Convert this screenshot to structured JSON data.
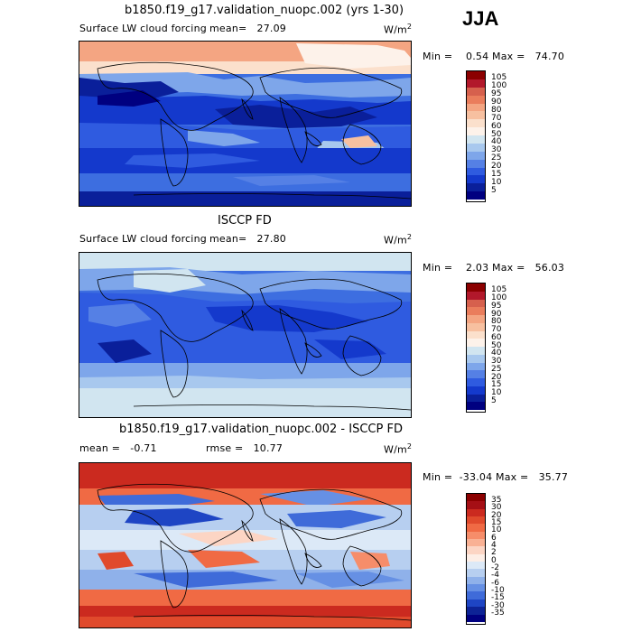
{
  "season": "JJA",
  "panels": [
    {
      "title": "b1850.f19_g17.validation_nuopc.002 (yrs 1-30)",
      "variable": "Surface LW cloud forcing",
      "mean_label": "mean=",
      "mean_value": "27.09",
      "units": "W/m",
      "units_exp": "2",
      "min_label": "Min =",
      "min_value": "0.54",
      "max_label": "Max =",
      "max_value": "74.70",
      "levels": [
        "105",
        "100",
        "95",
        "90",
        "80",
        "70",
        "60",
        "50",
        "40",
        "30",
        "25",
        "20",
        "15",
        "10",
        "5"
      ],
      "colors": [
        "#8b0000",
        "#b2182b",
        "#d6604d",
        "#ea7d5c",
        "#f4a582",
        "#f7c0a0",
        "#fbe0cc",
        "#fdf2ea",
        "#d1e5f0",
        "#a8c8ee",
        "#7ea6ea",
        "#5580e5",
        "#2f5be0",
        "#1439cc",
        "#0a1f9a",
        "#000080"
      ]
    },
    {
      "title": "ISCCP FD",
      "variable": "Surface LW cloud forcing",
      "mean_label": "mean=",
      "mean_value": "27.80",
      "units": "W/m",
      "units_exp": "2",
      "min_label": "Min =",
      "min_value": "2.03",
      "max_label": "Max =",
      "max_value": "56.03",
      "levels": [
        "105",
        "100",
        "95",
        "90",
        "80",
        "70",
        "60",
        "50",
        "40",
        "30",
        "25",
        "20",
        "15",
        "10",
        "5"
      ],
      "colors": [
        "#8b0000",
        "#b2182b",
        "#d6604d",
        "#ea7d5c",
        "#f4a582",
        "#f7c0a0",
        "#fbe0cc",
        "#fdf2ea",
        "#d1e5f0",
        "#a8c8ee",
        "#7ea6ea",
        "#5580e5",
        "#2f5be0",
        "#1439cc",
        "#0a1f9a",
        "#000080"
      ]
    },
    {
      "title": "b1850.f19_g17.validation_nuopc.002 - ISCCP FD",
      "mean_label": "mean =",
      "mean_value": "-0.71",
      "rmse_label": "rmse =",
      "rmse_value": "10.77",
      "units": "W/m",
      "units_exp": "2",
      "min_label": "Min =",
      "min_value": "-33.04",
      "max_label": "Max =",
      "max_value": "35.77",
      "levels": [
        "35",
        "30",
        "20",
        "15",
        "10",
        "6",
        "4",
        "2",
        "0",
        "-2",
        "-4",
        "-6",
        "-10",
        "-15",
        "-30",
        "-35"
      ],
      "colors": [
        "#8b0000",
        "#a50f15",
        "#cb2a1f",
        "#e04a2c",
        "#f06a44",
        "#f68d6a",
        "#f9b194",
        "#fcd5c4",
        "#fdeee6",
        "#dce9f7",
        "#b7cff0",
        "#8fb1ea",
        "#6690e4",
        "#3f6bd9",
        "#1e45c4",
        "#0d2396",
        "#000080"
      ]
    }
  ]
}
